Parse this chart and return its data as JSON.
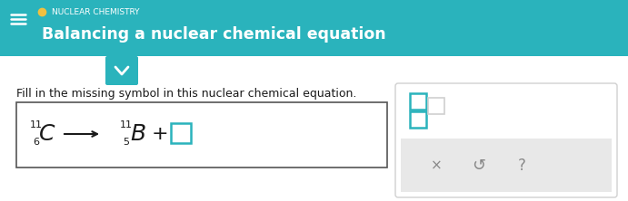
{
  "bg_header_color": "#2ab3bc",
  "bg_body_color": "#ffffff",
  "header_text1": "NUCLEAR CHEMISTRY",
  "header_text2": "Balancing a nuclear chemical equation",
  "header_dot_color": "#f0c040",
  "hamburger_color": "#ffffff",
  "body_instruction": "Fill in the missing symbol in this nuclear chemical equation.",
  "equation_box_color": "#ffffff",
  "equation_border_color": "#555555",
  "teal_color": "#2ab3bc",
  "gray_color": "#d0d0d0",
  "light_gray_bg": "#e8e8e8",
  "answer_box_color": "#ffffff",
  "chevron_bg": "#2ab3bc",
  "chevron_color": "#ffffff",
  "text_dark": "#1a1a1a",
  "text_gray": "#888888",
  "figsize": [
    6.91,
    2.22
  ],
  "dpi": 100
}
